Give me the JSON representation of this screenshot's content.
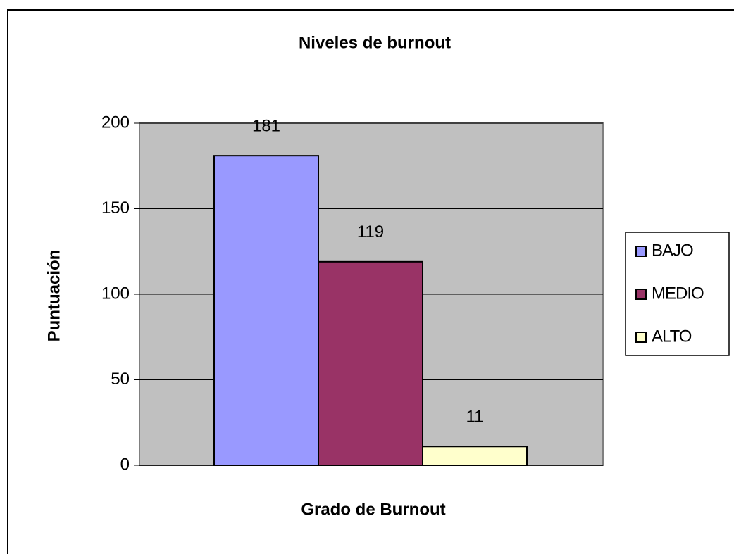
{
  "chart_data": {
    "type": "bar",
    "title": "Niveles de burnout",
    "x_label": "Grado de Burnout",
    "y_label": "Puntuación",
    "series": [
      {
        "name": "BAJO",
        "color": "#9999ff",
        "values": [
          181
        ]
      },
      {
        "name": "MEDIO",
        "color": "#993366",
        "values": [
          119
        ]
      },
      {
        "name": "ALTO",
        "color": "#ffffcc",
        "values": [
          11
        ]
      }
    ],
    "ylim": [
      0,
      200
    ],
    "yticks": [
      0,
      50,
      100,
      150,
      200
    ],
    "grid": true,
    "legend": "right"
  }
}
